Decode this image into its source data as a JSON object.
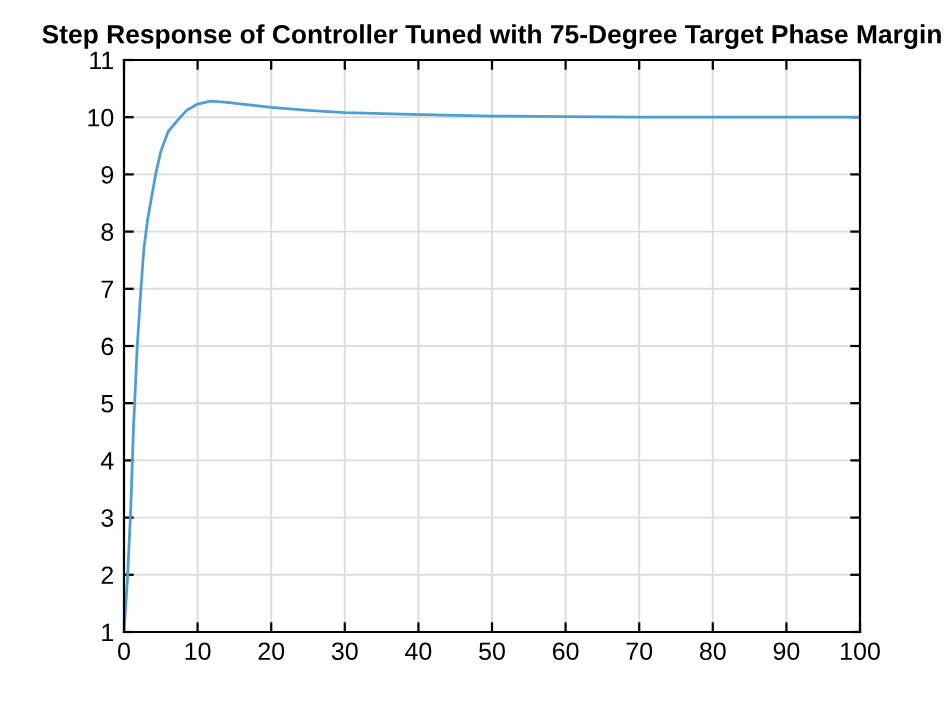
{
  "chart_data": {
    "type": "line",
    "title": "Step Response of Controller Tuned with 75-Degree Target Phase Margin",
    "x": [
      0,
      0.3,
      0.5,
      0.9,
      1.3,
      1.8,
      2.3,
      2.7,
      3.2,
      3.6,
      4.3,
      5,
      6,
      7.3,
      8.5,
      10,
      11.8,
      14,
      16,
      20,
      25,
      30,
      39,
      50,
      60,
      70,
      80,
      90,
      100
    ],
    "series": [
      {
        "color": "#4d9fcf",
        "values": [
          1,
          1.6,
          2.0,
          3.1,
          4.6,
          6.0,
          7.0,
          7.7,
          8.2,
          8.5,
          9.0,
          9.4,
          9.75,
          9.95,
          10.12,
          10.23,
          10.28,
          10.26,
          10.23,
          10.17,
          10.12,
          10.08,
          10.05,
          10.02,
          10.01,
          10.0,
          10.0,
          10.0,
          10.0
        ]
      }
    ],
    "xlim": [
      0,
      100
    ],
    "ylim": [
      1,
      11
    ],
    "xticks": [
      0,
      10,
      20,
      30,
      40,
      50,
      60,
      70,
      80,
      90,
      100
    ],
    "yticks": [
      1,
      2,
      3,
      4,
      5,
      6,
      7,
      8,
      9,
      10,
      11
    ],
    "grid": true,
    "marker": "none",
    "line_style": "solid"
  }
}
